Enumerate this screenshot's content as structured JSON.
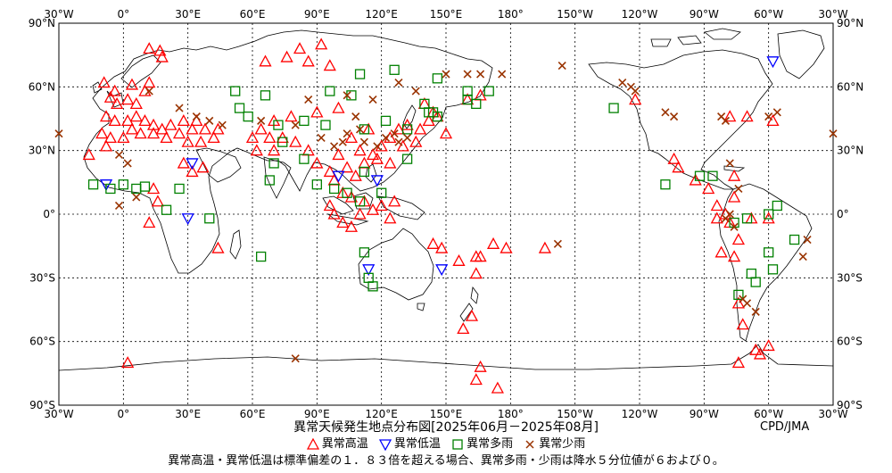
{
  "map": {
    "title": "異常天候発生地点分布図[2025年06月－2025年08月]",
    "credit": "CPD/JMA",
    "x_ticks": [
      "30°W",
      "0°",
      "30°E",
      "60°E",
      "90°E",
      "120°E",
      "150°E",
      "180°",
      "150°W",
      "120°W",
      "90°W",
      "60°W",
      "30°W"
    ],
    "y_ticks": [
      "90°N",
      "60°N",
      "30°N",
      "0°",
      "30°S",
      "60°S",
      "90°S"
    ],
    "legend": [
      {
        "symbol": "triangle-up",
        "label": "異常高温",
        "color": "#ff0000"
      },
      {
        "symbol": "triangle-down",
        "label": "異常低温",
        "color": "#0000ff"
      },
      {
        "symbol": "square",
        "label": "異常多雨",
        "color": "#008000"
      },
      {
        "symbol": "cross",
        "label": "異常少雨",
        "color": "#993300"
      }
    ],
    "note": "異常高温・異常低温は標準偏差の１．８３倍を超える場合、異常多雨・少雨は降水５分位値が６および０。"
  },
  "chart_data": {
    "type": "scatter",
    "xlabel": "",
    "ylabel": "",
    "xlim": [
      -30,
      330
    ],
    "ylim": [
      -90,
      90
    ],
    "series": [
      {
        "name": "異常高温",
        "points": [
          [
            12,
            78
          ],
          [
            17,
            77
          ],
          [
            18,
            74
          ],
          [
            -9,
            62
          ],
          [
            -4,
            58
          ],
          [
            4,
            61
          ],
          [
            10,
            58
          ],
          [
            12,
            62
          ],
          [
            -6,
            55
          ],
          [
            -3,
            52
          ],
          [
            2,
            54
          ],
          [
            6,
            52
          ],
          [
            -8,
            46
          ],
          [
            -4,
            44
          ],
          [
            2,
            44
          ],
          [
            6,
            46
          ],
          [
            10,
            44
          ],
          [
            14,
            42
          ],
          [
            18,
            40
          ],
          [
            22,
            42
          ],
          [
            -10,
            38
          ],
          [
            -6,
            36
          ],
          [
            0,
            36
          ],
          [
            4,
            40
          ],
          [
            8,
            38
          ],
          [
            14,
            38
          ],
          [
            20,
            36
          ],
          [
            26,
            38
          ],
          [
            32,
            40
          ],
          [
            28,
            44
          ],
          [
            34,
            44
          ],
          [
            38,
            40
          ],
          [
            44,
            40
          ],
          [
            30,
            34
          ],
          [
            36,
            34
          ],
          [
            42,
            36
          ],
          [
            -16,
            28
          ],
          [
            -8,
            32
          ],
          [
            28,
            24
          ],
          [
            32,
            20
          ],
          [
            37,
            22
          ],
          [
            14,
            12
          ],
          [
            16,
            6
          ],
          [
            44,
            -16
          ],
          [
            12,
            -4
          ],
          [
            66,
            72
          ],
          [
            76,
            74
          ],
          [
            86,
            72
          ],
          [
            96,
            70
          ],
          [
            92,
            80
          ],
          [
            82,
            78
          ],
          [
            100,
            50
          ],
          [
            90,
            48
          ],
          [
            78,
            46
          ],
          [
            70,
            44
          ],
          [
            64,
            40
          ],
          [
            60,
            36
          ],
          [
            68,
            36
          ],
          [
            74,
            36
          ],
          [
            80,
            34
          ],
          [
            86,
            30
          ],
          [
            62,
            30
          ],
          [
            70,
            30
          ],
          [
            90,
            24
          ],
          [
            96,
            20
          ],
          [
            98,
            16
          ],
          [
            104,
            22
          ],
          [
            108,
            18
          ],
          [
            112,
            24
          ],
          [
            116,
            28
          ],
          [
            120,
            32
          ],
          [
            124,
            36
          ],
          [
            128,
            40
          ],
          [
            132,
            42
          ],
          [
            138,
            40
          ],
          [
            142,
            44
          ],
          [
            144,
            48
          ],
          [
            136,
            34
          ],
          [
            130,
            32
          ],
          [
            114,
            40
          ],
          [
            106,
            36
          ],
          [
            110,
            30
          ],
          [
            118,
            26
          ],
          [
            100,
            28
          ],
          [
            102,
            10
          ],
          [
            106,
            8
          ],
          [
            96,
            4
          ],
          [
            98,
            0
          ],
          [
            102,
            -4
          ],
          [
            106,
            -6
          ],
          [
            110,
            0
          ],
          [
            112,
            6
          ],
          [
            116,
            2
          ],
          [
            120,
            4
          ],
          [
            126,
            6
          ],
          [
            124,
            -2
          ],
          [
            124,
            24
          ],
          [
            140,
            52
          ],
          [
            146,
            46
          ],
          [
            150,
            38
          ],
          [
            144,
            -14
          ],
          [
            148,
            -16
          ],
          [
            156,
            -22
          ],
          [
            164,
            -20
          ],
          [
            172,
            -14
          ],
          [
            178,
            -16
          ],
          [
            196,
            -16
          ],
          [
            160,
            54
          ],
          [
            166,
            56
          ],
          [
            164,
            -28
          ],
          [
            166,
            -20
          ],
          [
            162,
            -48
          ],
          [
            158,
            -54
          ],
          [
            166,
            -72
          ],
          [
            164,
            -78
          ],
          [
            174,
            -82
          ],
          [
            2,
            -70
          ],
          [
            238,
            54
          ],
          [
            256,
            26
          ],
          [
            258,
            22
          ],
          [
            266,
            16
          ],
          [
            272,
            12
          ],
          [
            276,
            4
          ],
          [
            280,
            0
          ],
          [
            284,
            8
          ],
          [
            276,
            -2
          ],
          [
            282,
            -4
          ],
          [
            292,
            -2
          ],
          [
            300,
            -2
          ],
          [
            286,
            -12
          ],
          [
            284,
            -20
          ],
          [
            278,
            -18
          ],
          [
            284,
            18
          ],
          [
            282,
            46
          ],
          [
            290,
            46
          ],
          [
            302,
            44
          ],
          [
            286,
            -42
          ],
          [
            288,
            -52
          ],
          [
            294,
            -64
          ],
          [
            300,
            -62
          ],
          [
            286,
            -70
          ],
          [
            296,
            -66
          ]
        ]
      },
      {
        "name": "異常低温",
        "points": [
          [
            -8,
            14
          ],
          [
            32,
            24
          ],
          [
            30,
            -2
          ],
          [
            100,
            18
          ],
          [
            118,
            16
          ],
          [
            114,
            -26
          ],
          [
            148,
            -26
          ],
          [
            302,
            72
          ]
        ]
      },
      {
        "name": "異常多雨",
        "points": [
          [
            52,
            58
          ],
          [
            66,
            56
          ],
          [
            96,
            58
          ],
          [
            110,
            66
          ],
          [
            126,
            68
          ],
          [
            146,
            64
          ],
          [
            106,
            56
          ],
          [
            54,
            50
          ],
          [
            58,
            46
          ],
          [
            72,
            42
          ],
          [
            84,
            44
          ],
          [
            94,
            42
          ],
          [
            112,
            40
          ],
          [
            122,
            44
          ],
          [
            132,
            40
          ],
          [
            142,
            48
          ],
          [
            146,
            46
          ],
          [
            132,
            26
          ],
          [
            120,
            10
          ],
          [
            112,
            20
          ],
          [
            110,
            6
          ],
          [
            104,
            10
          ],
          [
            98,
            12
          ],
          [
            90,
            14
          ],
          [
            84,
            26
          ],
          [
            74,
            34
          ],
          [
            70,
            24
          ],
          [
            68,
            16
          ],
          [
            112,
            -18
          ],
          [
            114,
            -30
          ],
          [
            116,
            -34
          ],
          [
            -14,
            14
          ],
          [
            -6,
            12
          ],
          [
            0,
            14
          ],
          [
            6,
            12
          ],
          [
            10,
            13
          ],
          [
            26,
            12
          ],
          [
            20,
            2
          ],
          [
            40,
            -2
          ],
          [
            64,
            -20
          ],
          [
            228,
            50
          ],
          [
            252,
            14
          ],
          [
            268,
            18
          ],
          [
            274,
            18
          ],
          [
            284,
            -4
          ],
          [
            290,
            -2
          ],
          [
            300,
            -18
          ],
          [
            302,
            -26
          ],
          [
            292,
            -28
          ],
          [
            294,
            -32
          ],
          [
            286,
            -38
          ],
          [
            312,
            -12
          ],
          [
            300,
            0
          ],
          [
            304,
            4
          ],
          [
            144,
            48
          ],
          [
            140,
            52
          ],
          [
            160,
            58
          ],
          [
            160,
            54
          ],
          [
            164,
            52
          ],
          [
            170,
            58
          ]
        ]
      },
      {
        "name": "異常少雨",
        "points": [
          [
            -30,
            38
          ],
          [
            330,
            38
          ],
          [
            -2,
            28
          ],
          [
            2,
            24
          ],
          [
            6,
            8
          ],
          [
            -2,
            4
          ],
          [
            12,
            58
          ],
          [
            26,
            50
          ],
          [
            34,
            46
          ],
          [
            40,
            44
          ],
          [
            46,
            42
          ],
          [
            64,
            44
          ],
          [
            80,
            42
          ],
          [
            92,
            36
          ],
          [
            98,
            32
          ],
          [
            102,
            34
          ],
          [
            104,
            38
          ],
          [
            110,
            40
          ],
          [
            112,
            34
          ],
          [
            118,
            32
          ],
          [
            122,
            36
          ],
          [
            126,
            38
          ],
          [
            128,
            34
          ],
          [
            132,
            36
          ],
          [
            108,
            46
          ],
          [
            86,
            54
          ],
          [
            104,
            56
          ],
          [
            116,
            54
          ],
          [
            128,
            62
          ],
          [
            136,
            58
          ],
          [
            160,
            66
          ],
          [
            150,
            66
          ],
          [
            166,
            66
          ],
          [
            176,
            66
          ],
          [
            202,
            -14
          ],
          [
            204,
            70
          ],
          [
            232,
            62
          ],
          [
            236,
            60
          ],
          [
            238,
            58
          ],
          [
            256,
            46
          ],
          [
            252,
            48
          ],
          [
            280,
            44
          ],
          [
            278,
            46
          ],
          [
            300,
            46
          ],
          [
            304,
            48
          ],
          [
            282,
            24
          ],
          [
            286,
            12
          ],
          [
            280,
            -2
          ],
          [
            282,
            0
          ],
          [
            284,
            -6
          ],
          [
            288,
            -40
          ],
          [
            290,
            -42
          ],
          [
            294,
            -46
          ],
          [
            316,
            -20
          ],
          [
            318,
            -12
          ],
          [
            80,
            -68
          ]
        ]
      }
    ]
  }
}
